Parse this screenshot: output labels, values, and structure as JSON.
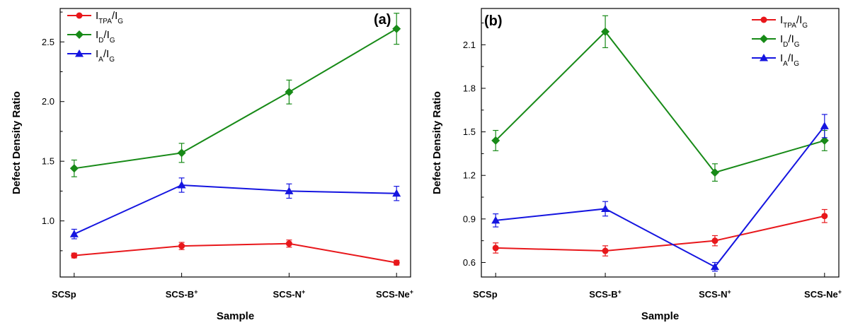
{
  "chart_data": [
    {
      "type": "line",
      "panel_label": "(a)",
      "xlabel": "Sample",
      "ylabel": "Defect Density Ratio",
      "categories": [
        "SCSp",
        "SCS-B+",
        "SCS-N+",
        "SCS-Ne+"
      ],
      "ylim": [
        0.53,
        2.78
      ],
      "yticks": [
        1.0,
        1.5,
        2.0,
        2.5
      ],
      "ytick_labels": [
        "1.0",
        "1.5",
        "2.0",
        "2.5"
      ],
      "legend_position": "top-left",
      "series": [
        {
          "name": "I_TPA/I_G",
          "color": "#e8171b",
          "marker": "circle",
          "values": [
            0.71,
            0.79,
            0.81,
            0.65
          ],
          "errors": [
            0.02,
            0.03,
            0.03,
            0.02
          ]
        },
        {
          "name": "I_D/I_G",
          "color": "#178a17",
          "marker": "diamond",
          "values": [
            1.44,
            1.57,
            2.08,
            2.61
          ],
          "errors": [
            0.07,
            0.08,
            0.1,
            0.13
          ]
        },
        {
          "name": "I_A/I_G",
          "color": "#1515e0",
          "marker": "triangle",
          "values": [
            0.89,
            1.3,
            1.25,
            1.23
          ],
          "errors": [
            0.04,
            0.06,
            0.06,
            0.06
          ]
        }
      ]
    },
    {
      "type": "line",
      "panel_label": "(b)",
      "xlabel": "Sample",
      "ylabel": "Defect Density Ratio",
      "categories": [
        "SCSp",
        "SCS-B+",
        "SCS-N+",
        "SCS-Ne+"
      ],
      "ylim": [
        0.5,
        2.35
      ],
      "yticks": [
        0.6,
        0.9,
        1.2,
        1.5,
        1.8,
        2.1
      ],
      "ytick_labels": [
        "0.6",
        "0.9",
        "1.2",
        "1.5",
        "1.8",
        "2.1"
      ],
      "legend_position": "top-right",
      "series": [
        {
          "name": "I_TPA/I_G",
          "color": "#e8171b",
          "marker": "circle",
          "values": [
            0.7,
            0.68,
            0.75,
            0.92
          ],
          "errors": [
            0.035,
            0.035,
            0.035,
            0.045
          ]
        },
        {
          "name": "I_D/I_G",
          "color": "#178a17",
          "marker": "diamond",
          "values": [
            1.44,
            2.19,
            1.22,
            1.44
          ],
          "errors": [
            0.07,
            0.11,
            0.06,
            0.07
          ]
        },
        {
          "name": "I_A/I_G",
          "color": "#1515e0",
          "marker": "triangle",
          "values": [
            0.89,
            0.97,
            0.57,
            1.54
          ],
          "errors": [
            0.045,
            0.05,
            0.03,
            0.08
          ]
        }
      ]
    }
  ]
}
